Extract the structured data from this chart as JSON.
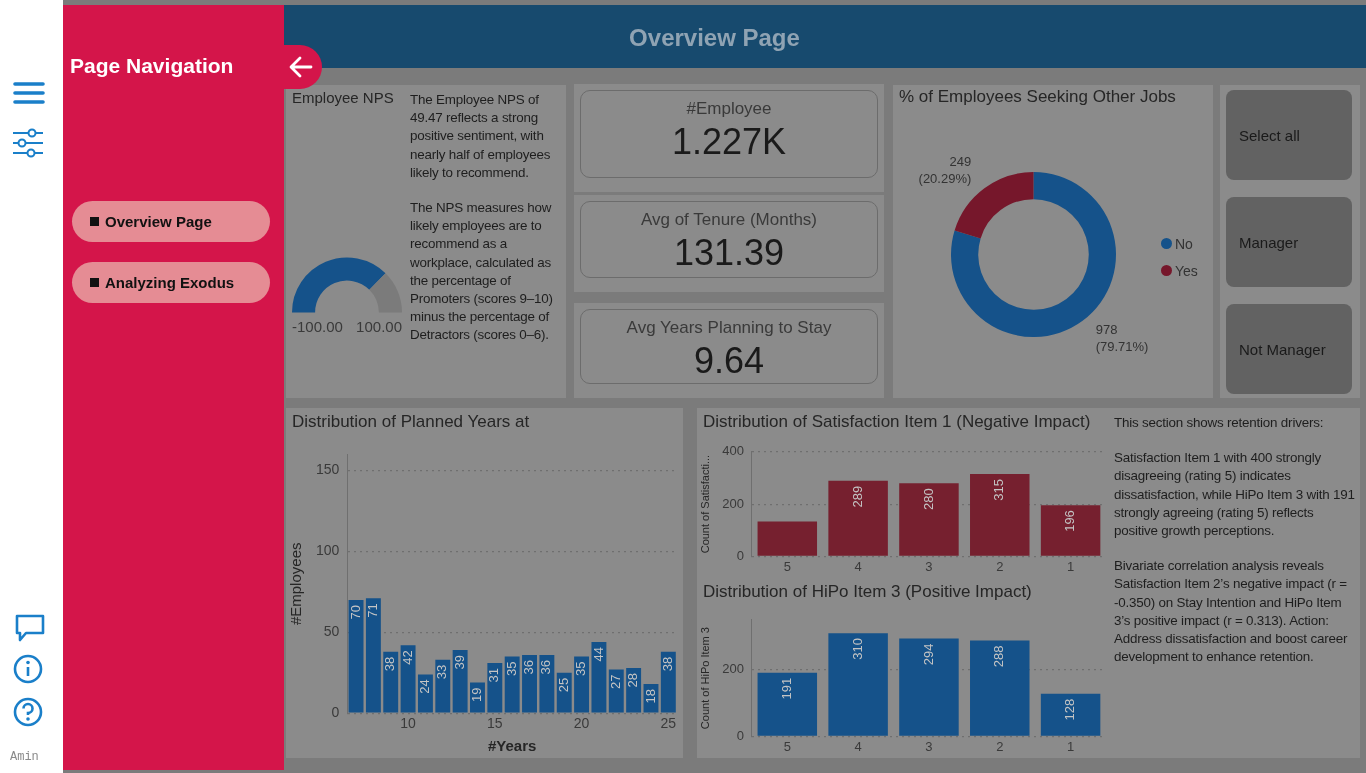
{
  "chart_data": [
    {
      "type": "other",
      "annotations": [
        "Amin"
      ]
    },
    {
      "type": "other",
      "title": "Overview Page"
    },
    {
      "type": "donut",
      "title": "Employee NPS",
      "categories": [
        null,
        null
      ],
      "values": [
        74.7,
        25.3
      ],
      "colors": [
        "#15528a",
        "#7b7b7b"
      ],
      "annotations": [
        "-100.00",
        "100.00"
      ]
    },
    {
      "type": "other",
      "annotations": [
        "The Employee NPS of 49.47 reflects a strong positive sentiment, with nearly half of employees likely to recommend.",
        "The NPS measures how likely employees are to recommend as a workplace, calculated as the percentage of Promoters (scores 9–10) minus the percentage of Detractors (scores 0–6)."
      ]
    },
    {
      "type": "other",
      "title": "#Employee",
      "annotations": [
        "1.227K"
      ]
    },
    {
      "type": "other",
      "title": "Avg of Tenure (Months)",
      "annotations": [
        "131.39"
      ]
    },
    {
      "type": "other",
      "title": "Avg Years Planning to Stay",
      "annotations": [
        "9.64"
      ]
    },
    {
      "type": "donut",
      "title": "% of Employees Seeking Other Jobs",
      "categories": [
        "No",
        "Yes"
      ],
      "values": [
        978,
        249
      ],
      "colors": [
        "#15528a",
        "#76172b"
      ],
      "legend": "right",
      "value_labels": [
        "978 (79.71%)",
        "249 (20.29%)"
      ]
    },
    {
      "type": "other",
      "annotations": [
        "Select all",
        "Manager",
        "Not Manager"
      ]
    },
    {
      "type": "bar",
      "title": "Distribution of Planned Years at",
      "xlabel": "#Years",
      "ylabel": "#Employees",
      "x": [
        7,
        8,
        9,
        10,
        11,
        12,
        13,
        14,
        15,
        16,
        17,
        18,
        19,
        20,
        21,
        22,
        23,
        24,
        25
      ],
      "values": [
        70,
        71,
        38,
        42,
        24,
        33,
        39,
        19,
        31,
        35,
        36,
        36,
        25,
        35,
        44,
        27,
        28,
        18,
        38
      ],
      "color": "#15528a",
      "xlim": [
        6.5,
        25.5
      ],
      "xticks": [
        10,
        15,
        20,
        25
      ],
      "ylim": [
        0,
        160
      ],
      "yticks": [
        0,
        50,
        100,
        150
      ],
      "grid": "y",
      "data_labels": true
    },
    {
      "type": "bar",
      "title": "Distribution of Satisfaction Item 1 (Negative Impact)",
      "ylabel": "Count of Satisfacti...",
      "categories": [
        "5",
        "4",
        "3",
        "2",
        "1"
      ],
      "values": [
        133,
        289,
        280,
        315,
        196
      ],
      "value_labels": [
        null,
        "289",
        "280",
        "315",
        "196"
      ],
      "color": "#76202f",
      "ylim": [
        0,
        400
      ],
      "yticks": [
        0,
        200,
        400
      ],
      "grid": "y"
    },
    {
      "type": "bar",
      "title": "Distribution of HiPo Item 3 (Positive Impact)",
      "ylabel": "Count of HiPo Item 3",
      "categories": [
        "5",
        "4",
        "3",
        "2",
        "1"
      ],
      "values": [
        191,
        310,
        294,
        288,
        128
      ],
      "color": "#15528a",
      "ylim": [
        0,
        350
      ],
      "yticks": [
        0,
        200
      ],
      "grid": "y",
      "data_labels": true
    },
    {
      "type": "other",
      "annotations": [
        "This section shows retention drivers:",
        "Satisfaction Item 1 with 400 strongly disagreeing (rating 5) indicates dissatisfaction, while HiPo Item 3 with 191 strongly agreeing (rating 5) reflects positive growth perceptions.",
        "Bivariate correlation analysis reveals Satisfaction Item 2’s negative impact (r = -0.350) on Stay Intention and HiPo Item 3’s positive impact (r = 0.313). Action: Address dissatisfaction and boost career development to enhance retention."
      ]
    },
    {
      "type": "other",
      "title": "Page Navigation",
      "annotations": [
        "Overview Page",
        "Analyzing Exodus"
      ]
    }
  ]
}
